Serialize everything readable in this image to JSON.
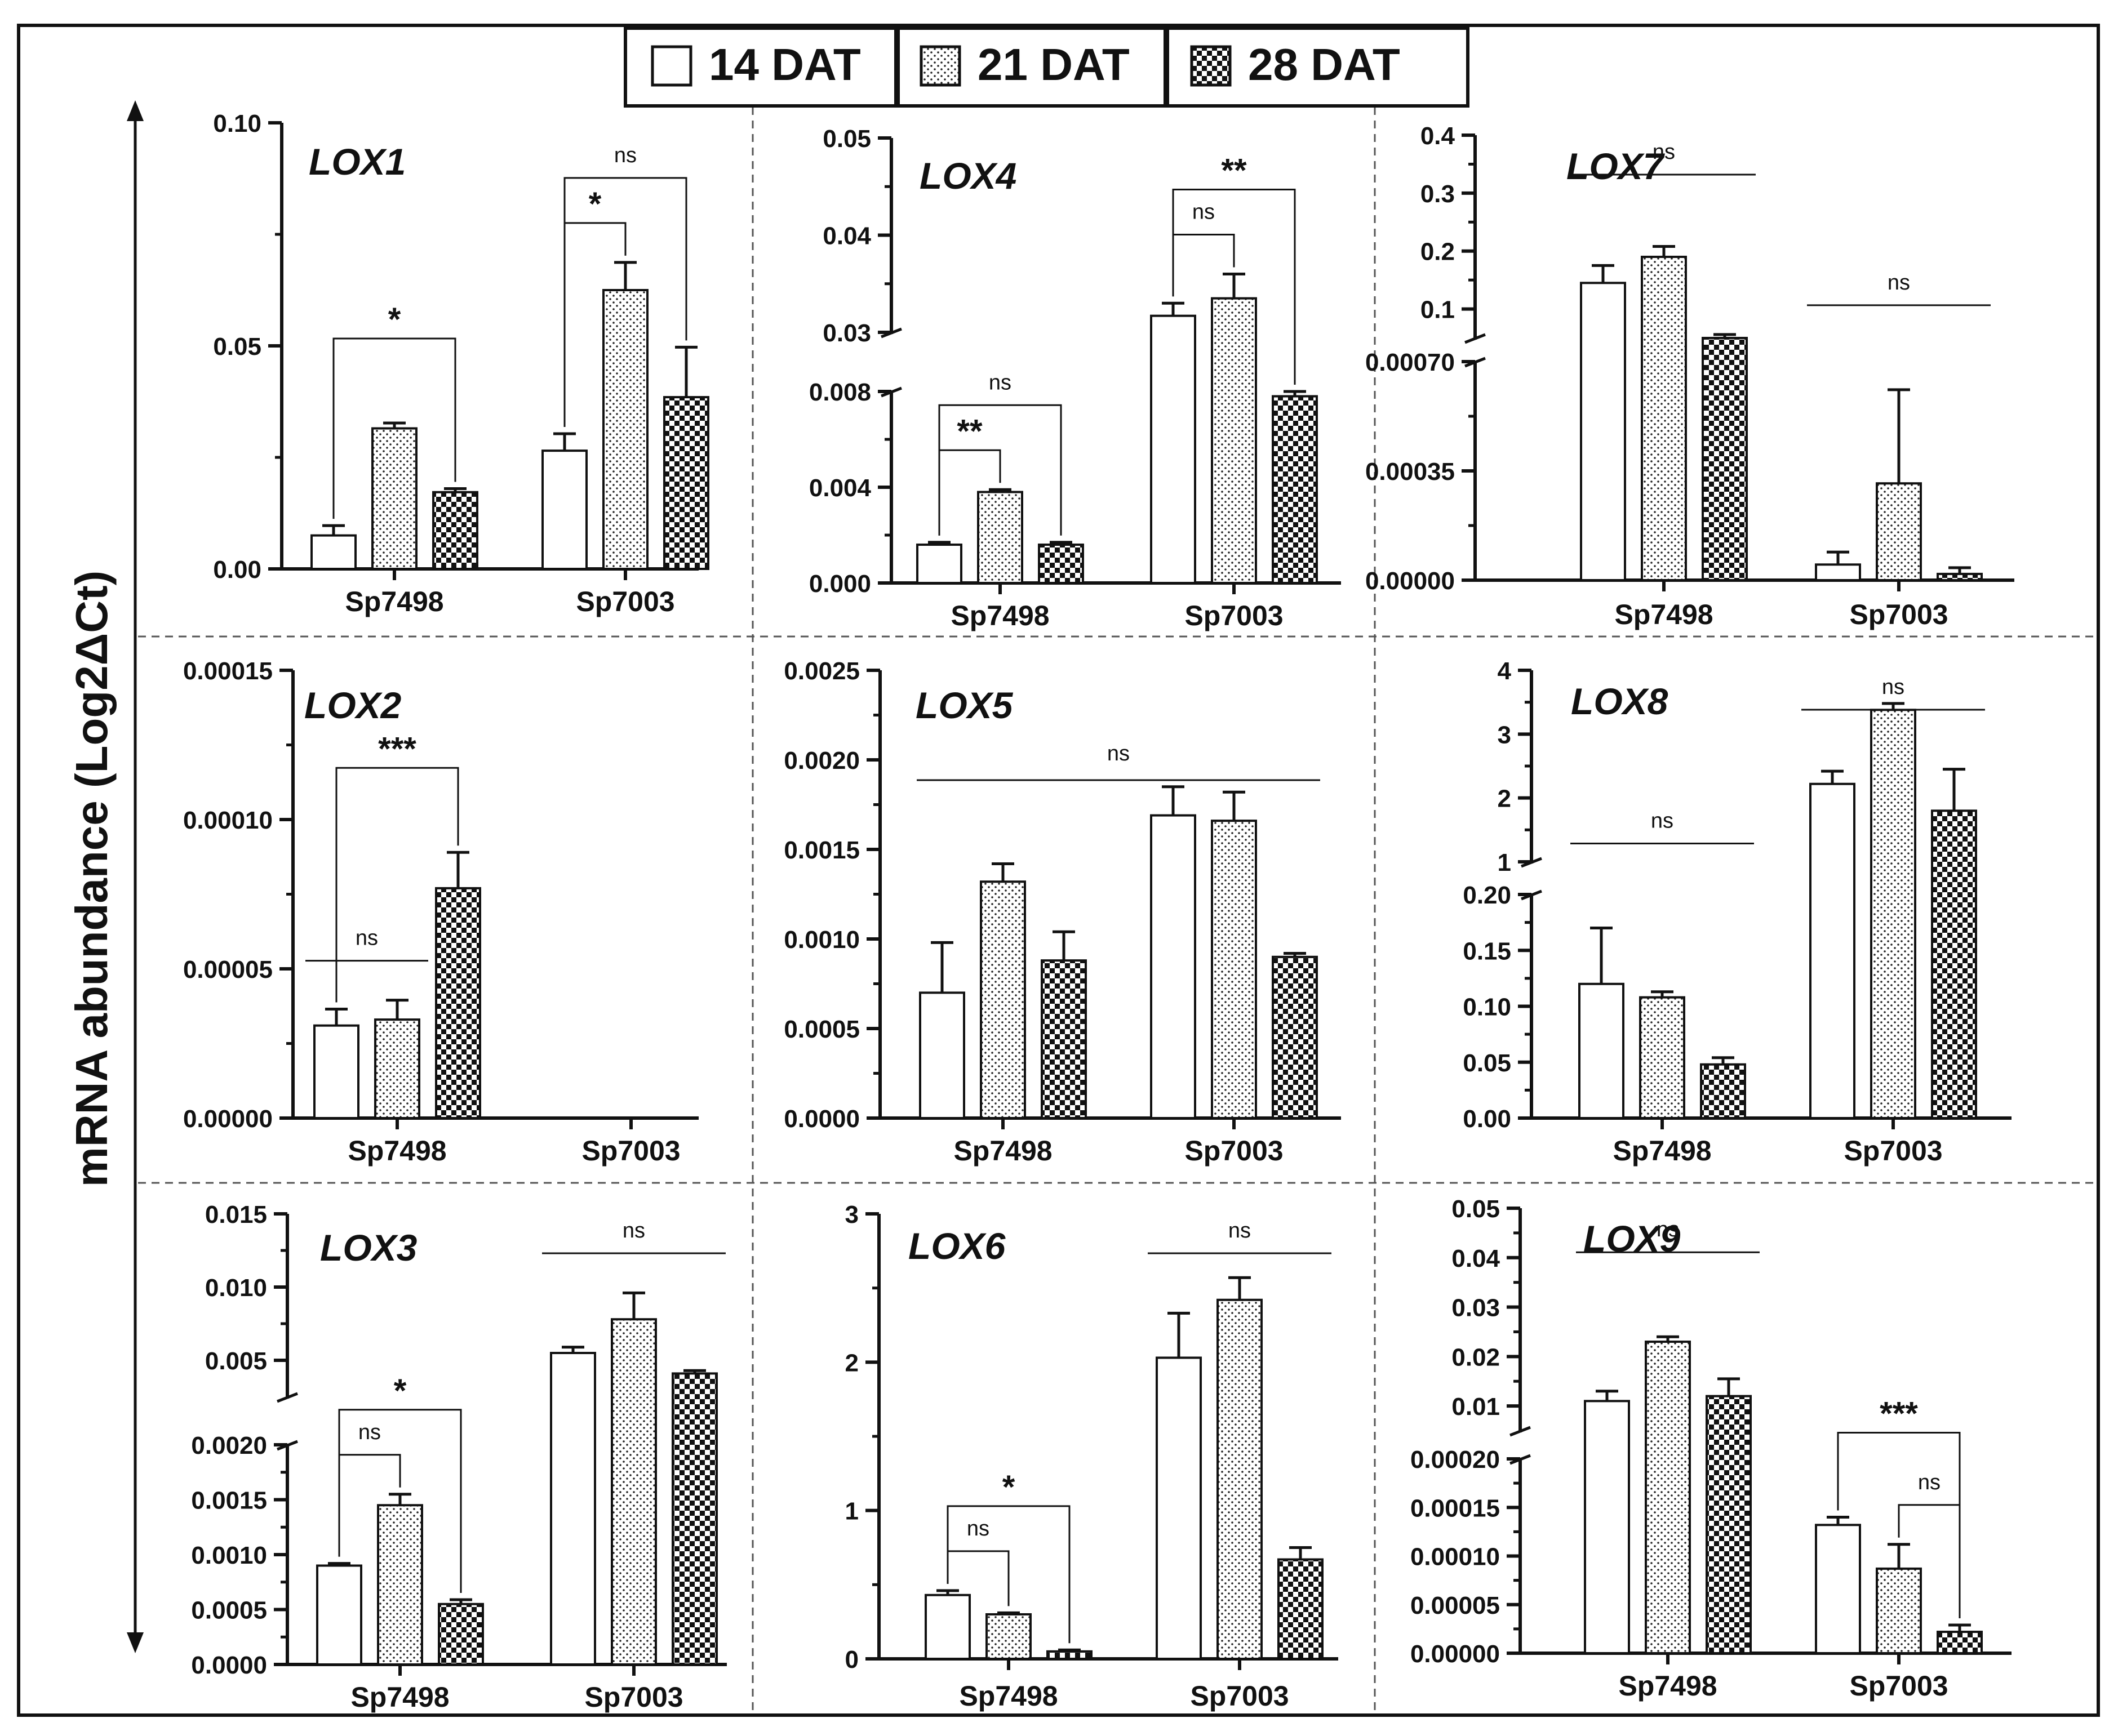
{
  "figure": {
    "ylabel": "mRNA abundance (Log2ΔCt)",
    "legend": [
      {
        "label": "14 DAT",
        "pattern": "white"
      },
      {
        "label": "21 DAT",
        "pattern": "dots"
      },
      {
        "label": "28 DAT",
        "pattern": "checker"
      }
    ]
  },
  "chart_data": [
    {
      "type": "bar",
      "title": "LOX1",
      "categories": [
        "Sp7498",
        "Sp7003"
      ],
      "series": [
        {
          "name": "14 DAT",
          "values": [
            0.0075,
            0.0265
          ],
          "errors": [
            0.0022,
            0.0038
          ]
        },
        {
          "name": "21 DAT",
          "values": [
            0.0315,
            0.0625
          ],
          "errors": [
            0.0012,
            0.0062
          ]
        },
        {
          "name": "28 DAT",
          "values": [
            0.0172,
            0.0385
          ],
          "errors": [
            0.0008,
            0.0112
          ]
        }
      ],
      "axis": {
        "segments": [
          {
            "min": 0,
            "max": 0.1,
            "ticks": [
              "0.00",
              "0.05",
              "0.10"
            ]
          }
        ]
      },
      "annotations": [
        {
          "text": "*",
          "group": 0,
          "from": 0,
          "to": 2
        },
        {
          "text": "ns",
          "group": 1,
          "from": 0,
          "to": 2
        },
        {
          "text": "*",
          "group": 1,
          "from": 0,
          "to": 1
        }
      ]
    },
    {
      "type": "bar",
      "title": "LOX4",
      "categories": [
        "Sp7498",
        "Sp7003"
      ],
      "series": [
        {
          "name": "14 DAT",
          "values": [
            0.0016,
            0.0317
          ],
          "errors": [
            0.0001,
            0.0013
          ]
        },
        {
          "name": "21 DAT",
          "values": [
            0.0038,
            0.0335
          ],
          "errors": [
            0.0001,
            0.0025
          ]
        },
        {
          "name": "28 DAT",
          "values": [
            0.0016,
            0.0078
          ],
          "errors": [
            0.0001,
            0.0002
          ]
        }
      ],
      "axis": {
        "segments": [
          {
            "min": 0,
            "max": 0.008,
            "ticks": [
              "0.000",
              "0.004",
              "0.008"
            ]
          },
          {
            "min": 0.03,
            "max": 0.05,
            "ticks": [
              "0.03",
              "0.04",
              "0.05"
            ]
          }
        ]
      },
      "annotations": [
        {
          "text": "ns",
          "group": 0,
          "from": 0,
          "to": 2
        },
        {
          "text": "**",
          "group": 0,
          "from": 0,
          "to": 1
        },
        {
          "text": "**",
          "group": 1,
          "from": 0,
          "to": 2
        },
        {
          "text": "ns",
          "group": 1,
          "from": 0,
          "to": 1
        }
      ]
    },
    {
      "type": "bar",
      "title": "LOX7",
      "categories": [
        "Sp7498",
        "Sp7003"
      ],
      "series": [
        {
          "name": "14 DAT",
          "values": [
            0.145,
            5e-05
          ],
          "errors": [
            0.03,
            4e-05
          ]
        },
        {
          "name": "21 DAT",
          "values": [
            0.19,
            0.00031
          ],
          "errors": [
            0.018,
            0.0003
          ]
        },
        {
          "name": "28 DAT",
          "values": [
            0.05,
            2e-05
          ],
          "errors": [
            0.006,
            2e-05
          ]
        }
      ],
      "axis": {
        "segments": [
          {
            "min": 0,
            "max": 0.0007,
            "ticks": [
              "0.00000",
              "0.00035",
              "0.00070"
            ]
          },
          {
            "min": 0.05,
            "max": 0.4,
            "ticks": [
              "0.1",
              "0.2",
              "0.3",
              "0.4"
            ]
          }
        ]
      },
      "annotations": [
        {
          "text": "ns",
          "group": 0,
          "from": 0,
          "to": 2,
          "type": "line"
        },
        {
          "text": "ns",
          "group": 1,
          "from": 0,
          "to": 2,
          "type": "line"
        }
      ]
    },
    {
      "type": "bar",
      "title": "LOX2",
      "categories": [
        "Sp7498",
        "Sp7003"
      ],
      "series": [
        {
          "name": "14 DAT",
          "values": [
            3.1e-05,
            0
          ],
          "errors": [
            5.5e-06,
            0
          ]
        },
        {
          "name": "21 DAT",
          "values": [
            3.3e-05,
            0
          ],
          "errors": [
            6.5e-06,
            0
          ]
        },
        {
          "name": "28 DAT",
          "values": [
            7.7e-05,
            0
          ],
          "errors": [
            1.2e-05,
            0
          ]
        }
      ],
      "axis": {
        "segments": [
          {
            "min": 0,
            "max": 0.00015,
            "ticks": [
              "0.00000",
              "0.00005",
              "0.00010",
              "0.00015"
            ]
          }
        ]
      },
      "annotations": [
        {
          "text": "***",
          "group": 0,
          "from": 0,
          "to": 2
        },
        {
          "text": "ns",
          "group": 0,
          "from": 0,
          "to": 1,
          "type": "line"
        }
      ]
    },
    {
      "type": "bar",
      "title": "LOX5",
      "categories": [
        "Sp7498",
        "Sp7003"
      ],
      "series": [
        {
          "name": "14 DAT",
          "values": [
            0.0007,
            0.00169
          ],
          "errors": [
            0.00028,
            0.00016
          ]
        },
        {
          "name": "21 DAT",
          "values": [
            0.00132,
            0.00166
          ],
          "errors": [
            0.0001,
            0.00016
          ]
        },
        {
          "name": "28 DAT",
          "values": [
            0.00088,
            0.0009
          ],
          "errors": [
            0.00016,
            2e-05
          ]
        }
      ],
      "axis": {
        "segments": [
          {
            "min": 0,
            "max": 0.0025,
            "ticks": [
              "0.0000",
              "0.0005",
              "0.0010",
              "0.0015",
              "0.0020",
              "0.0025"
            ]
          }
        ]
      },
      "annotations": [
        {
          "text": "ns",
          "group": "all",
          "type": "line"
        }
      ]
    },
    {
      "type": "bar",
      "title": "LOX8",
      "categories": [
        "Sp7498",
        "Sp7003"
      ],
      "series": [
        {
          "name": "14 DAT",
          "values": [
            0.12,
            2.22
          ],
          "errors": [
            0.05,
            0.2
          ]
        },
        {
          "name": "21 DAT",
          "values": [
            0.108,
            3.38
          ],
          "errors": [
            0.005,
            0.1
          ]
        },
        {
          "name": "28 DAT",
          "values": [
            0.048,
            1.8
          ],
          "errors": [
            0.006,
            0.65
          ]
        }
      ],
      "axis": {
        "segments": [
          {
            "min": 0,
            "max": 0.2,
            "ticks": [
              "0.00",
              "0.05",
              "0.10",
              "0.15",
              "0.20"
            ]
          },
          {
            "min": 1,
            "max": 4,
            "ticks": [
              "1",
              "2",
              "3",
              "4"
            ]
          }
        ]
      },
      "annotations": [
        {
          "text": "ns",
          "group": 0,
          "from": 0,
          "to": 2,
          "type": "line"
        },
        {
          "text": "ns",
          "group": 1,
          "from": 0,
          "to": 2,
          "type": "line"
        }
      ]
    },
    {
      "type": "bar",
      "title": "LOX3",
      "categories": [
        "Sp7498",
        "Sp7003"
      ],
      "series": [
        {
          "name": "14 DAT",
          "values": [
            0.0009,
            0.0055
          ],
          "errors": [
            2e-05,
            0.0004
          ]
        },
        {
          "name": "21 DAT",
          "values": [
            0.00145,
            0.0078
          ],
          "errors": [
            0.0001,
            0.0018
          ]
        },
        {
          "name": "28 DAT",
          "values": [
            0.00055,
            0.0041
          ],
          "errors": [
            4e-05,
            0.0002
          ]
        }
      ],
      "axis": {
        "segments": [
          {
            "min": 0,
            "max": 0.002,
            "ticks": [
              "0.0000",
              "0.0005",
              "0.0010",
              "0.0015",
              "0.0020"
            ]
          },
          {
            "min": 0.0025,
            "max": 0.015,
            "ticks": [
              "0.005",
              "0.010",
              "0.015"
            ]
          }
        ]
      },
      "annotations": [
        {
          "text": "*",
          "group": 0,
          "from": 0,
          "to": 2
        },
        {
          "text": "ns",
          "group": 0,
          "from": 0,
          "to": 1
        },
        {
          "text": "ns",
          "group": 1,
          "from": 0,
          "to": 2,
          "type": "line"
        }
      ]
    },
    {
      "type": "bar",
      "title": "LOX6",
      "categories": [
        "Sp7498",
        "Sp7003"
      ],
      "series": [
        {
          "name": "14 DAT",
          "values": [
            0.43,
            2.03
          ],
          "errors": [
            0.03,
            0.3
          ]
        },
        {
          "name": "21 DAT",
          "values": [
            0.3,
            2.42
          ],
          "errors": [
            0.01,
            0.15
          ]
        },
        {
          "name": "28 DAT",
          "values": [
            0.05,
            0.67
          ],
          "errors": [
            0.01,
            0.08
          ]
        }
      ],
      "axis": {
        "segments": [
          {
            "min": 0,
            "max": 3,
            "ticks": [
              "0",
              "1",
              "2",
              "3"
            ]
          }
        ]
      },
      "annotations": [
        {
          "text": "*",
          "group": 0,
          "from": 0,
          "to": 2
        },
        {
          "text": "ns",
          "group": 0,
          "from": 0,
          "to": 1
        },
        {
          "text": "ns",
          "group": 1,
          "from": 0,
          "to": 2,
          "type": "line"
        }
      ]
    },
    {
      "type": "bar",
      "title": "LOX9",
      "categories": [
        "Sp7498",
        "Sp7003"
      ],
      "series": [
        {
          "name": "14 DAT",
          "values": [
            0.011,
            0.000132
          ],
          "errors": [
            0.002,
            8e-06
          ]
        },
        {
          "name": "21 DAT",
          "values": [
            0.023,
            8.7e-05
          ],
          "errors": [
            0.001,
            2.5e-05
          ]
        },
        {
          "name": "28 DAT",
          "values": [
            0.012,
            2.2e-05
          ],
          "errors": [
            0.0035,
            7e-06
          ]
        }
      ],
      "axis": {
        "segments": [
          {
            "min": 0,
            "max": 0.0002,
            "ticks": [
              "0.00000",
              "0.00005",
              "0.00010",
              "0.00015",
              "0.00020"
            ]
          },
          {
            "min": 0.005,
            "max": 0.05,
            "ticks": [
              "0.01",
              "0.02",
              "0.03",
              "0.04",
              "0.05"
            ]
          }
        ]
      },
      "annotations": [
        {
          "text": "ns",
          "group": 0,
          "from": 0,
          "to": 2,
          "type": "line"
        },
        {
          "text": "***",
          "group": 1,
          "from": 0,
          "to": 2
        },
        {
          "text": "ns",
          "group": 1,
          "from": 1,
          "to": 2
        }
      ]
    }
  ]
}
